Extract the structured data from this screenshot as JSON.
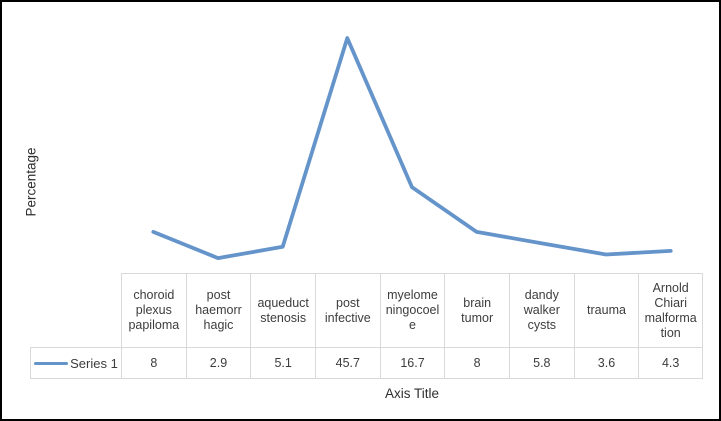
{
  "chart": {
    "y_axis_title": "Percentage",
    "x_axis_title": "Axis Title",
    "legend_label": "Series 1"
  },
  "chart_data": {
    "type": "line",
    "title": "",
    "xlabel": "Axis Title",
    "ylabel": "Percentage",
    "ylim": [
      0,
      50
    ],
    "grid": false,
    "legend_position": "table-row-left",
    "categories": [
      "choroid plexus papiloma",
      "post haemorrhagic",
      "aqueduct stenosis",
      "post infective",
      "myelomeningocoele",
      "brain tumor",
      "dandy walker cysts",
      "trauma",
      "Arnold Chiari malformation"
    ],
    "categories_wrapped": [
      "choroid\nplexus\npapiloma",
      "post\nhaemorr\nhagic",
      "aqueduct\nstenosis",
      "post\ninfective",
      "myelome\nningocoel\ne",
      "brain\ntumor",
      "dandy\nwalker\ncysts",
      "trauma",
      "Arnold\nChiari\nmalforma\ntion"
    ],
    "series": [
      {
        "name": "Series 1",
        "values": [
          8,
          2.9,
          5.1,
          45.7,
          16.7,
          8,
          5.8,
          3.6,
          4.3
        ]
      }
    ],
    "line_color": "#6494ca",
    "table_border_color": "#d9d9d9",
    "frame_border_color": "#000000"
  }
}
